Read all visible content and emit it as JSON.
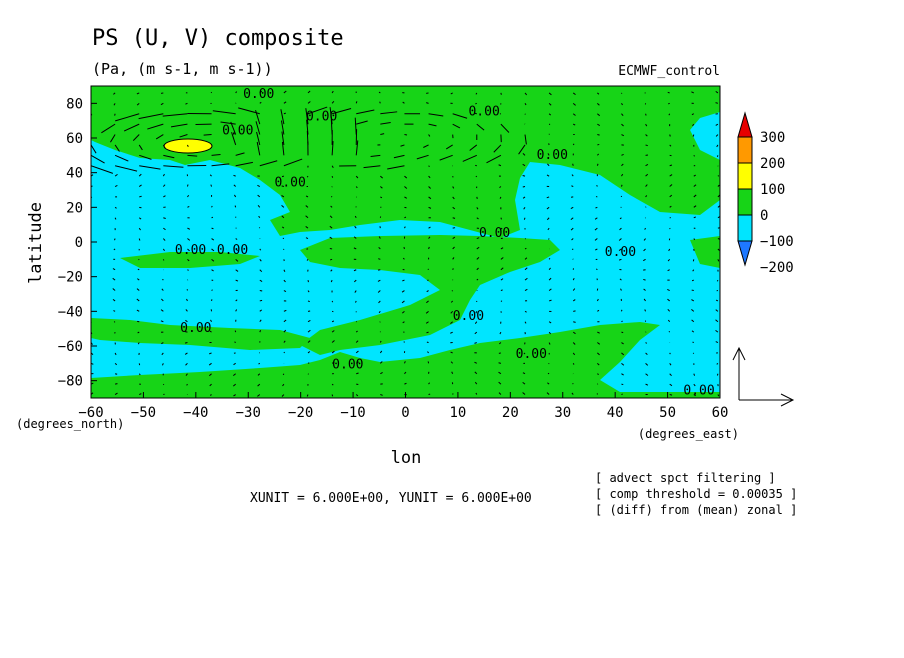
{
  "chart_data": {
    "type": "heatmap",
    "title": "PS (U, V) composite",
    "subtitle": "(Pa, (m s-1, m s-1))",
    "dataset_label": "ECMWF_control",
    "xlabel": "lon",
    "ylabel": "latitude",
    "x_unit_label": "(degrees_east)",
    "y_unit_label": "(degrees_north)",
    "xlim": [
      -60,
      60
    ],
    "ylim": [
      -90,
      90
    ],
    "x_ticks": [
      -60,
      -50,
      -40,
      -30,
      -20,
      -10,
      0,
      10,
      20,
      30,
      40,
      50,
      60
    ],
    "y_ticks": [
      -80,
      -60,
      -40,
      -20,
      0,
      20,
      40,
      60,
      80
    ],
    "contour_label": "0.00",
    "colorbar": {
      "levels": [
        -200,
        -100,
        0,
        100,
        200,
        300
      ],
      "tick_labels": [
        "300",
        "200",
        "100",
        "0",
        "−100",
        "−200"
      ],
      "colors": [
        "#1e78ff",
        "#00e5ff",
        "#17d417",
        "#ffff00",
        "#ff9900",
        "#e60000"
      ]
    },
    "unit_note": "XUNIT = 6.000E+00, YUNIT = 6.000E+00",
    "notes": [
      "[ advect spct filtering ]",
      "[ comp threshold = 0.00035 ]",
      "[ (diff) from (mean) zonal ]"
    ],
    "background_color": "#00e5ff",
    "positive_color": "#17d417",
    "max_color": "#ffff00",
    "vector_field": true
  }
}
